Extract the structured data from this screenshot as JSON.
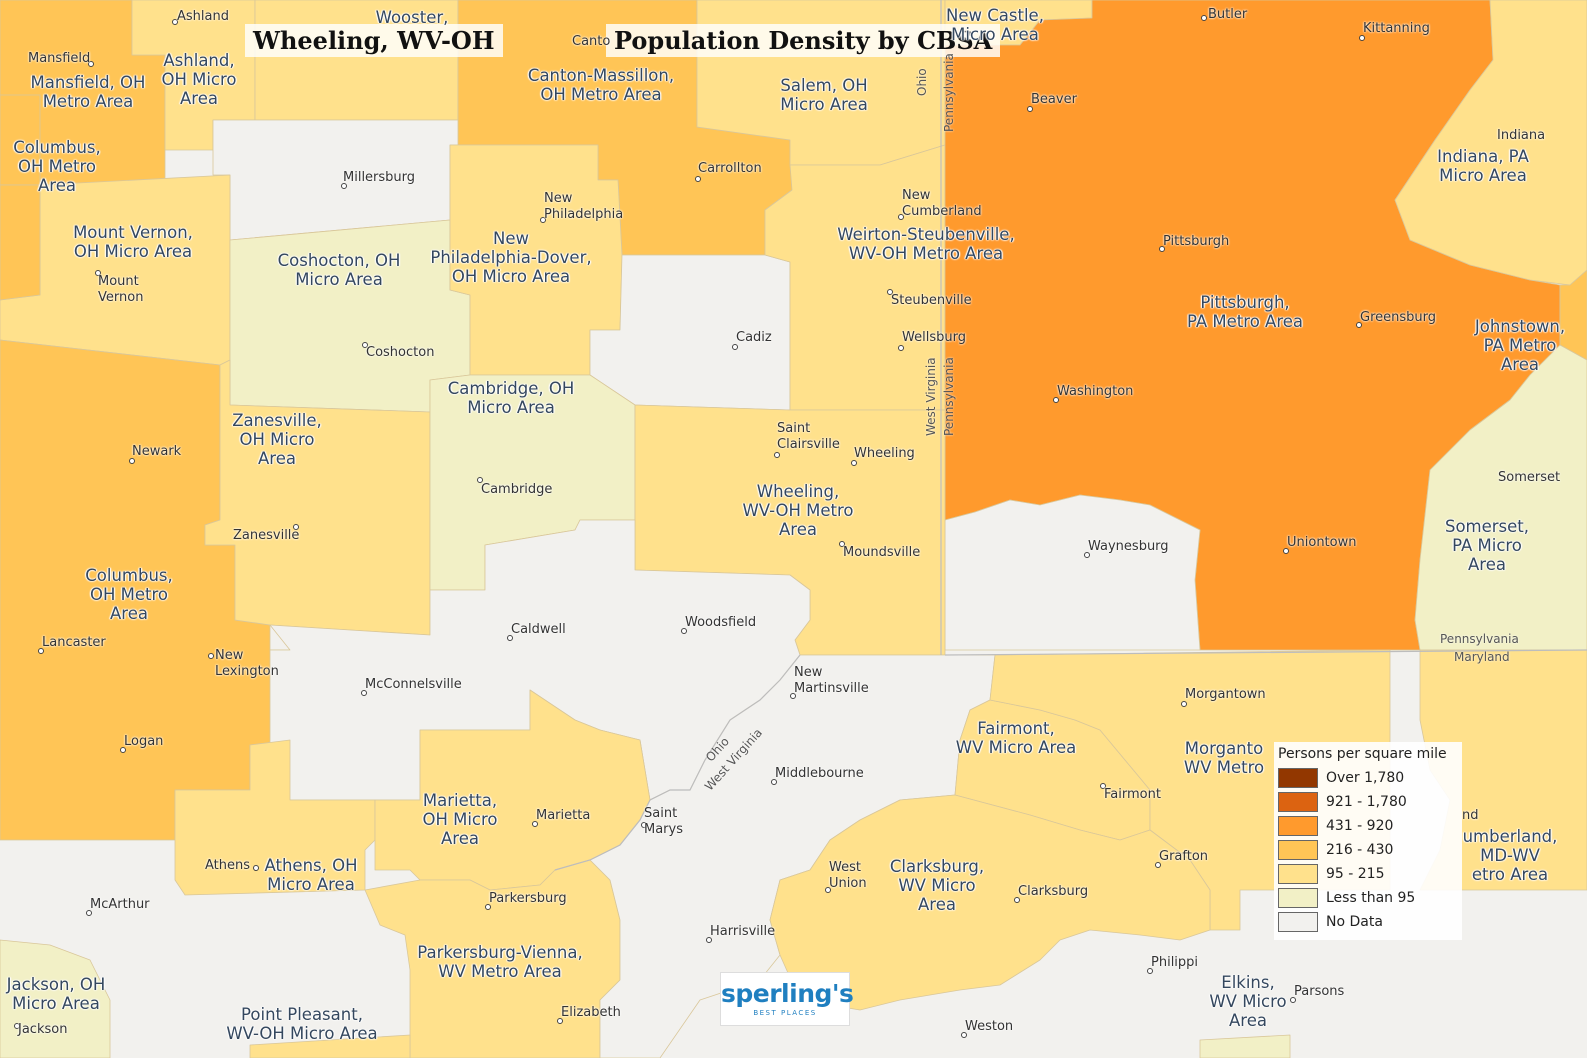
{
  "title_left": "Wheeling, WV-OH",
  "title_right": "Population Density by CBSA",
  "colors": {
    "over_1780": "#923700",
    "c921_1780": "#dc6311",
    "c431_920": "#ff9a2d",
    "c216_430": "#ffc556",
    "c95_215": "#ffe18c",
    "less_95": "#f2f0c6",
    "no_data": "#f2f1ee"
  },
  "legend": {
    "title": "Persons per square mile",
    "items": [
      {
        "label": "Over 1,780",
        "color": "#923700"
      },
      {
        "label": "921 - 1,780",
        "color": "#dc6311"
      },
      {
        "label": "431 - 920",
        "color": "#ff9a2d"
      },
      {
        "label": "216 - 430",
        "color": "#ffc556"
      },
      {
        "label": "95 - 215",
        "color": "#ffe18c"
      },
      {
        "label": "Less than 95",
        "color": "#f2f0c6"
      },
      {
        "label": "No Data",
        "color": "#f2f1ee"
      }
    ]
  },
  "area_labels": {
    "mansfield": "Mansfield, OH\nMetro Area",
    "ashland": "Ashland,\nOH Micro\nArea",
    "wooster": "Wooster,",
    "canton": "Canton-Massillon,\nOH Metro Area",
    "salem": "Salem, OH\nMicro Area",
    "newcastle": "New Castle,\nMicro Area",
    "columbus_n": "Columbus,\nOH Metro\nArea",
    "indiana": "Indiana, PA\nMicro Area",
    "mtvernon": "Mount Vernon,\nOH Micro Area",
    "coshocton": "Coshocton, OH\nMicro Area",
    "newphila": "New\nPhiladelphia-Dover,\nOH Micro Area",
    "weirton": "Weirton-Steubenville,\nWV-OH Metro Area",
    "pittsburgh": "Pittsburgh,\nPA Metro Area",
    "johnstown": "Johnstown,\nPA Metro\nArea",
    "cambridge": "Cambridge, OH\nMicro Area",
    "zanesville": "Zanesville,\nOH Micro\nArea",
    "wheeling": "Wheeling,\nWV-OH Metro\nArea",
    "columbus_s": "Columbus,\nOH Metro\nArea",
    "somerset": "Somerset,\nPA Micro\nArea",
    "fairmont": "Fairmont,\nWV Micro Area",
    "morgantown": "Morganto\nWV Metro",
    "marietta": "Marietta,\nOH Micro\nArea",
    "athens": "Athens, OH\nMicro Area",
    "clarksburg": "Clarksburg,\nWV Micro\nArea",
    "cumberland": "umberland,\nMD-WV\netro Area",
    "parkersburg": "Parkersburg-Vienna,\nWV Metro Area",
    "jackson": "Jackson, OH\nMicro Area",
    "pointpleasant": "Point Pleasant,\nWV-OH Micro Area",
    "elkins": "Elkins,\nWV Micro\nArea"
  },
  "cities": {
    "ashland": "Ashland",
    "mansfield": "Mansfield",
    "canton": "Canto",
    "butler": "Butler",
    "kittanning": "Kittanning",
    "beaver": "Beaver",
    "millersburg": "Millersburg",
    "carrollton": "Carrollton",
    "indiana": "Indiana",
    "newphila": "New\nPhiladelphia",
    "newcumberland": "New\nCumberland",
    "pittsburgh": "Pittsburgh",
    "mtvernon": "Mount\nVernon",
    "steubenville": "Steubenville",
    "greensburg": "Greensburg",
    "coshocton": "Coshocton",
    "cadiz": "Cadiz",
    "wellsburg": "Wellsburg",
    "washington": "Washington",
    "stclairsville": "Saint\nClairsville",
    "wheeling": "Wheeling",
    "newark": "Newark",
    "cambridge": "Cambridge",
    "somerset": "Somerset",
    "zanesville": "Zanesville",
    "uniontown": "Uniontown",
    "moundsville": "Moundsville",
    "waynesburg": "Waynesburg",
    "caldwell": "Caldwell",
    "woodsfield": "Woodsfield",
    "lancaster": "Lancaster",
    "newlexington": "New\nLexington",
    "newmartinsville": "New\nMartinsville",
    "mcconnelsville": "McConnelsville",
    "morgantown": "Morgantown",
    "logan": "Logan",
    "middlebourne": "Middlebourne",
    "fairmont": "Fairmont",
    "marietta": "Marietta",
    "stmarys": "Saint\nMarys",
    "athens": "Athens",
    "grafton": "Grafton",
    "westunion": "West\nUnion",
    "clarksburg": "Clarksburg",
    "mcarthur": "McArthur",
    "parkersburg": "Parkersburg",
    "harrisville": "Harrisville",
    "philippi": "Philippi",
    "parsons": "Parsons",
    "jackson": "Jackson",
    "elizabeth": "Elizabeth",
    "weston": "Weston",
    "nd": "nd"
  },
  "state_labels": {
    "ohio_top": "Ohio",
    "penn_top": "Pennsylvania",
    "wv_mid": "West Virginia",
    "penn_mid": "Pennsylvania",
    "penn_md_1": "Pennsylvania",
    "penn_md_2": "Maryland",
    "ohio_river": "Ohio",
    "wv_river": "West Virginia"
  },
  "logo": {
    "name": "sperling's",
    "tagline": "BEST PLACES"
  }
}
